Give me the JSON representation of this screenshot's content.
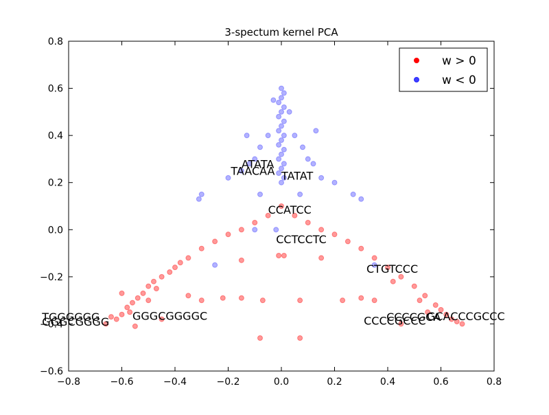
{
  "chart_data": {
    "type": "scatter",
    "title": "3-spectum kernel PCA",
    "xlim": [
      -0.8,
      0.8
    ],
    "xticks": [
      {
        "value": -0.8,
        "label": "−0.8"
      },
      {
        "value": -0.6,
        "label": "−0.6"
      },
      {
        "value": -0.4,
        "label": "−0.4"
      },
      {
        "value": -0.2,
        "label": "−0.2"
      },
      {
        "value": 0,
        "label": "0.0"
      },
      0.2,
      0.4,
      0.6,
      0.8
    ],
    "ylim": [
      -0.6,
      0.8
    ],
    "yticks": [
      {
        "value": -0.6,
        "label": "−0.6"
      },
      {
        "value": -0.4,
        "label": "−0.4"
      },
      {
        "value": -0.2,
        "label": "−0.2"
      },
      {
        "value": 0,
        "label": "0.0"
      },
      0.2,
      0.4,
      0.6,
      0.8
    ],
    "legend": "upper right",
    "series": [
      {
        "name": "w > 0",
        "color": "#ff0000",
        "opacity": 0.4,
        "x": [
          -0.66,
          -0.62,
          -0.6,
          -0.58,
          -0.56,
          -0.54,
          -0.52,
          -0.5,
          -0.48,
          -0.45,
          -0.42,
          -0.4,
          -0.38,
          -0.35,
          -0.3,
          -0.25,
          -0.2,
          -0.15,
          -0.1,
          -0.05,
          0,
          0.05,
          0.1,
          0.15,
          0.2,
          0.25,
          0.3,
          0.35,
          0.4,
          0.45,
          0.5,
          0.54,
          0.58,
          0.62,
          0.66,
          0.68,
          -0.55,
          -0.5,
          -0.35,
          -0.3,
          -0.22,
          -0.15,
          -0.07,
          0.07,
          0.23,
          0.3,
          0.35,
          -0.08,
          0.07,
          -0.01,
          0.01,
          -0.15,
          0.15,
          0.45,
          -0.45,
          0.55,
          -0.6,
          -0.64,
          -0.57,
          0.6,
          0.64,
          0.52,
          -0.47,
          0.42
        ],
        "values": [
          -0.4,
          -0.38,
          -0.36,
          -0.33,
          -0.31,
          -0.29,
          -0.27,
          -0.24,
          -0.22,
          -0.2,
          -0.18,
          -0.16,
          -0.14,
          -0.12,
          -0.08,
          -0.05,
          -0.02,
          0,
          0.03,
          0.06,
          0.1,
          0.06,
          0.03,
          0,
          -0.02,
          -0.05,
          -0.08,
          -0.12,
          -0.16,
          -0.2,
          -0.24,
          -0.28,
          -0.32,
          -0.36,
          -0.39,
          -0.4,
          -0.41,
          -0.3,
          -0.28,
          -0.3,
          -0.29,
          -0.29,
          -0.3,
          -0.3,
          -0.3,
          -0.29,
          -0.3,
          -0.46,
          -0.46,
          -0.11,
          -0.11,
          -0.13,
          -0.12,
          -0.4,
          -0.38,
          -0.35,
          -0.27,
          -0.37,
          -0.35,
          -0.34,
          -0.38,
          -0.3,
          -0.25,
          -0.22
        ]
      },
      {
        "name": "w < 0",
        "color": "#0000ff",
        "opacity": 0.3,
        "x": [
          0,
          0.01,
          -0.01,
          0,
          0.01,
          -0.01,
          0,
          0.01,
          -0.01,
          0,
          0.01,
          -0.01,
          0,
          0.01,
          -0.01,
          0,
          0.01,
          -0.01,
          0,
          0.01,
          0,
          -0.03,
          0.03,
          -0.05,
          0.05,
          -0.08,
          0.08,
          -0.1,
          0.1,
          -0.12,
          0.12,
          -0.15,
          0.15,
          -0.2,
          0.2,
          -0.3,
          -0.31,
          0.27,
          0.3,
          -0.08,
          0.07,
          -0.1,
          -0.25,
          0.35,
          -0.02,
          0.13,
          -0.13
        ],
        "values": [
          0.2,
          0.22,
          0.24,
          0.26,
          0.28,
          0.3,
          0.32,
          0.34,
          0.36,
          0.38,
          0.4,
          0.42,
          0.44,
          0.46,
          0.48,
          0.5,
          0.52,
          0.54,
          0.56,
          0.58,
          0.6,
          0.55,
          0.5,
          0.4,
          0.4,
          0.35,
          0.35,
          0.3,
          0.3,
          0.28,
          0.28,
          0.25,
          0.22,
          0.22,
          0.2,
          0.15,
          0.13,
          0.15,
          0.13,
          0.15,
          0.15,
          0,
          -0.15,
          -0.15,
          0,
          0.42,
          0.4
        ]
      }
    ],
    "annotations": [
      {
        "text": "ATATA",
        "x": -0.15,
        "y": 0.28
      },
      {
        "text": "TAACAA",
        "x": -0.19,
        "y": 0.25
      },
      {
        "text": "TATAT",
        "x": 0,
        "y": 0.23
      },
      {
        "text": "CCATCC",
        "x": -0.05,
        "y": 0.085
      },
      {
        "text": "CCTCCTC",
        "x": -0.02,
        "y": -0.04
      },
      {
        "text": "CTGTCCC",
        "x": 0.32,
        "y": -0.165
      },
      {
        "text": "TGGGGGG",
        "x": -0.9,
        "y": -0.37
      },
      {
        "text": "GGGCGGGG",
        "x": -0.9,
        "y": -0.39
      },
      {
        "text": "GGGCGGGGC",
        "x": -0.56,
        "y": -0.365
      },
      {
        "text": "CCCCGCCC",
        "x": 0.31,
        "y": -0.385
      },
      {
        "text": "CCCCGCA",
        "x": 0.395,
        "y": -0.37
      },
      {
        "text": "GCACCCGCCC",
        "x": 0.547,
        "y": -0.367
      }
    ]
  }
}
